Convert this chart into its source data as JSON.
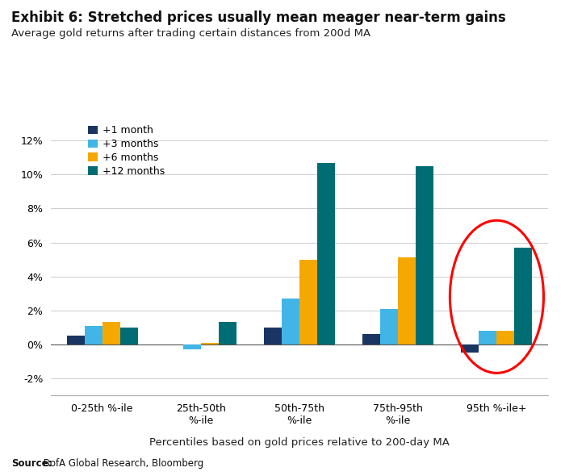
{
  "title_bold": "Exhibit 6: Stretched prices usually mean meager near-term gains",
  "subtitle": "Average gold returns after trading certain distances from 200d MA",
  "xlabel": "Percentiles based on gold prices relative to 200-day MA",
  "source_bold": "Source:",
  "source_rest": " BofA Global Research, Bloomberg",
  "categories": [
    "0-25th %-ile",
    "25th-50th\n%-ile",
    "50th-75th\n%-ile",
    "75th-95th\n%-ile",
    "95th %-ile+"
  ],
  "series": [
    {
      "label": "+1 month",
      "color": "#1a3562",
      "values": [
        0.5,
        0.0,
        1.0,
        0.6,
        -0.5
      ]
    },
    {
      "label": "+3 months",
      "color": "#41b6e6",
      "values": [
        1.1,
        -0.3,
        2.7,
        2.1,
        0.8
      ]
    },
    {
      "label": "+6 months",
      "color": "#f5a800",
      "values": [
        1.3,
        0.1,
        5.0,
        5.1,
        0.8
      ]
    },
    {
      "label": "+12 months",
      "color": "#006d74",
      "values": [
        1.0,
        1.3,
        10.7,
        10.5,
        5.7
      ]
    }
  ],
  "ylim": [
    -3,
    13
  ],
  "yticks": [
    -2,
    0,
    2,
    4,
    6,
    8,
    10,
    12
  ],
  "ytick_labels": [
    "-2%",
    "0%",
    "2%",
    "4%",
    "6%",
    "8%",
    "10%",
    "12%"
  ],
  "background_color": "#ffffff",
  "grid_color": "#cccccc",
  "bar_width": 0.18
}
